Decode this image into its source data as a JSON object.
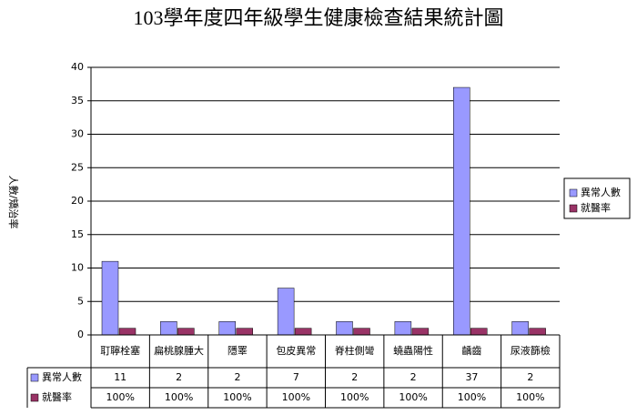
{
  "chart_data": {
    "type": "bar",
    "title": "103學年度四年級學生健康檢查結果統計圖",
    "y_label": "人數/矯治率",
    "categories": [
      "耵聹栓塞",
      "扁桃腺腫大",
      "隱睪",
      "包皮異常",
      "脊柱側彎",
      "蟯蟲陽性",
      "齲齒",
      "尿液篩檢"
    ],
    "series": [
      {
        "name": "異常人數",
        "color": "#9999ff",
        "values": [
          11,
          2,
          2,
          7,
          2,
          2,
          37,
          2
        ]
      },
      {
        "name": "就醫率",
        "color": "#993366",
        "values": [
          1,
          1,
          1,
          1,
          1,
          1,
          1,
          1
        ],
        "value_labels": [
          "100%",
          "100%",
          "100%",
          "100%",
          "100%",
          "100%",
          "100%",
          "100%"
        ]
      }
    ],
    "ylim": [
      0,
      40
    ],
    "yticks": [
      0,
      5,
      10,
      15,
      20,
      25,
      30,
      35,
      40
    ],
    "grid": true,
    "legend": "right"
  }
}
